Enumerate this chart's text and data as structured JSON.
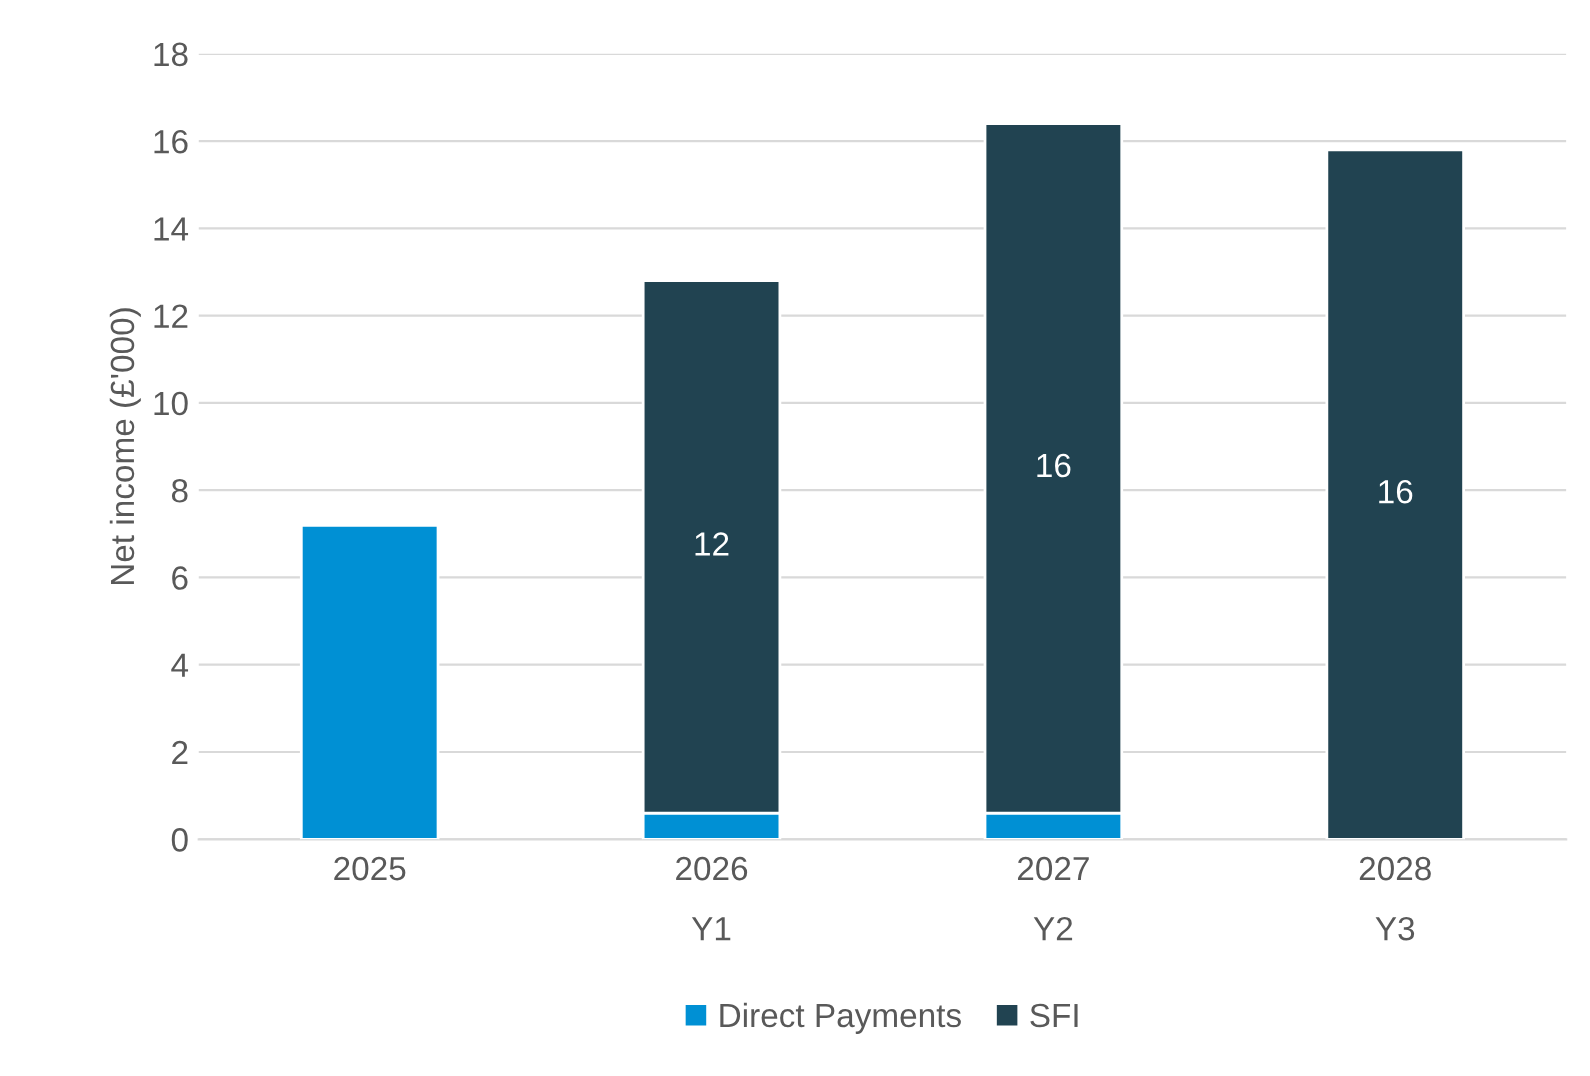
{
  "chart_data": {
    "type": "bar",
    "stacked": true,
    "ylabel": "Net income (£'000)",
    "categories": [
      "2025",
      "2026\nY1",
      "2027\nY2",
      "2028\nY3"
    ],
    "series": [
      {
        "name": "Direct Payments",
        "color": "#0090d4",
        "values": [
          7.2,
          0.6,
          0.6,
          0
        ]
      },
      {
        "name": "SFI",
        "color": "#214351",
        "values": [
          null,
          12.2,
          15.8,
          15.8
        ],
        "value_labels": [
          null,
          "12",
          "16",
          "16"
        ]
      }
    ],
    "ylim": [
      0,
      18
    ],
    "yticks": [
      0,
      2,
      4,
      6,
      8,
      10,
      12,
      14,
      16,
      18
    ],
    "grid": "y",
    "legend": "bottom"
  }
}
